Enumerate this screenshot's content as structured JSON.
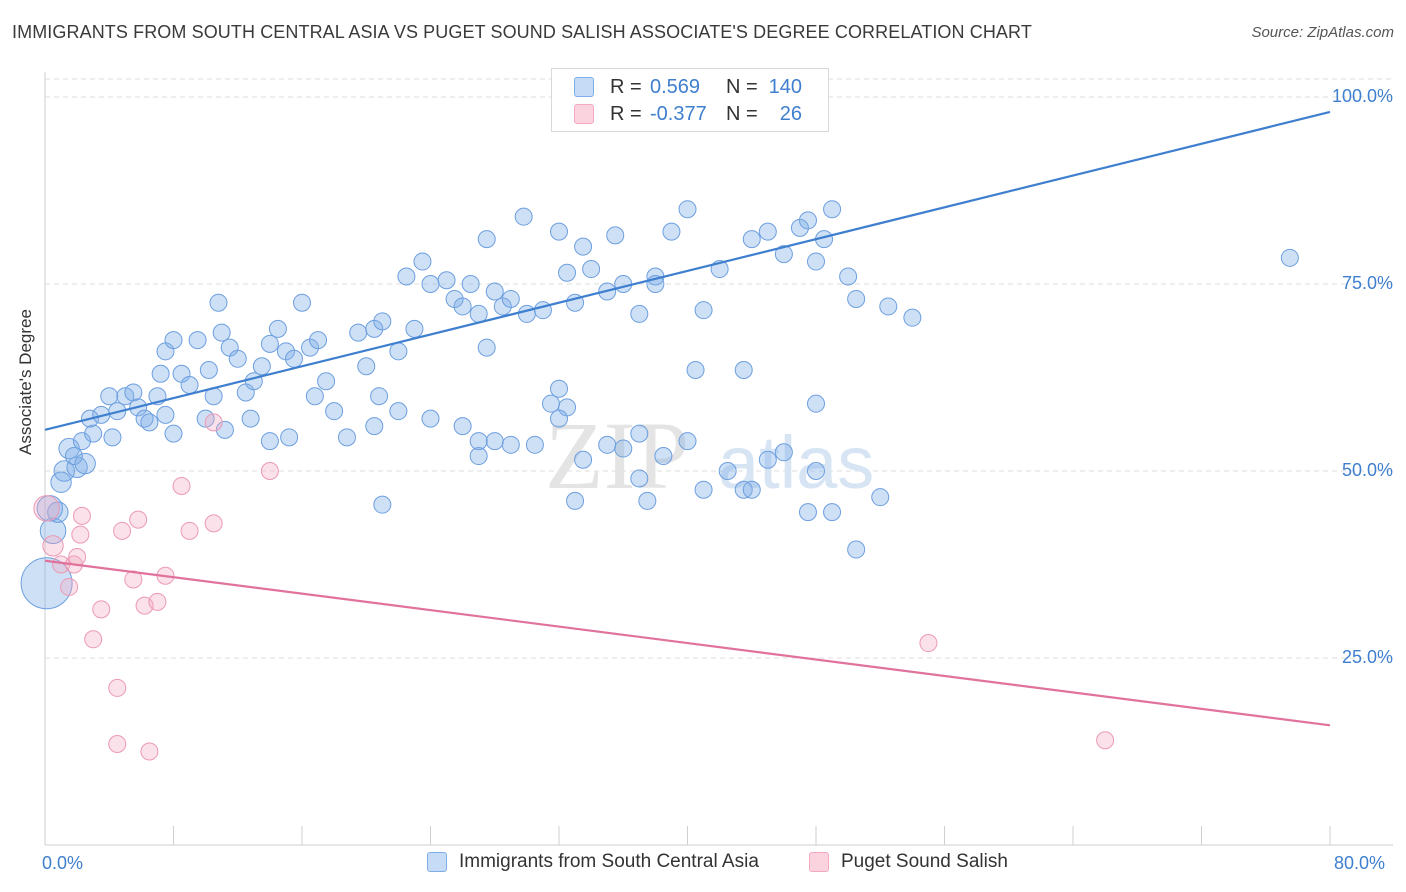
{
  "title": "IMMIGRANTS FROM SOUTH CENTRAL ASIA VS PUGET SOUND SALISH ASSOCIATE'S DEGREE CORRELATION CHART",
  "source": "Source: ZipAtlas.com",
  "watermark": {
    "zip": "ZIP",
    "atlas": "atlas"
  },
  "colors": {
    "blue": "#7eaee8",
    "blue_line": "#3f7fcf",
    "pink": "#f4a9c0",
    "pink_line": "#e0729c",
    "grid": "#dedede"
  },
  "legend": {
    "rows": [
      {
        "r_label": "R =",
        "r_value": "0.569",
        "n_label": "N =",
        "n_value": "140"
      },
      {
        "r_label": "R =",
        "r_value": "-0.377",
        "n_label": "N =",
        "n_value": "26"
      }
    ]
  },
  "bottom_legend": {
    "series1": "Immigrants from South Central Asia",
    "series2": "Puget Sound Salish"
  },
  "chart_data": {
    "type": "scatter",
    "title": "IMMIGRANTS FROM SOUTH CENTRAL ASIA VS PUGET SOUND SALISH ASSOCIATE'S DEGREE CORRELATION CHART",
    "xlabel": "",
    "ylabel": "Associate's Degree",
    "xlim": [
      0,
      80
    ],
    "ylim": [
      0,
      102
    ],
    "x_tick_labels": [
      "0.0%",
      "80.0%"
    ],
    "y_tick_labels": [
      "25.0%",
      "50.0%",
      "75.0%",
      "100.0%"
    ],
    "y_ticks": [
      25,
      50,
      75,
      100
    ],
    "series": [
      {
        "name": "Immigrants from South Central Asia",
        "trend": {
          "x0": 0,
          "y0": 55.5,
          "x1": 80,
          "y1": 98
        },
        "points": [
          [
            0.1,
            35,
            3
          ],
          [
            0.3,
            45,
            1.5
          ],
          [
            0.5,
            42,
            1.5
          ],
          [
            0.8,
            44.5,
            1.2
          ],
          [
            1.2,
            50,
            1.2
          ],
          [
            1.0,
            48.5,
            1.2
          ],
          [
            1.5,
            53,
            1.2
          ],
          [
            2.0,
            50.5,
            1.2
          ],
          [
            1.8,
            52,
            1
          ],
          [
            2.5,
            51,
            1.2
          ],
          [
            2.3,
            54,
            1
          ],
          [
            3.0,
            55,
            1
          ],
          [
            2.8,
            57,
            1
          ],
          [
            3.5,
            57.5,
            1
          ],
          [
            4.0,
            60,
            1
          ],
          [
            4.2,
            54.5,
            1
          ],
          [
            4.5,
            58,
            1
          ],
          [
            5.0,
            60,
            1
          ],
          [
            5.5,
            60.5,
            1
          ],
          [
            5.8,
            58.5,
            1
          ],
          [
            6.2,
            57,
            1
          ],
          [
            6.5,
            56.5,
            1
          ],
          [
            7.0,
            60,
            1
          ],
          [
            7.5,
            57.5,
            1
          ],
          [
            8.0,
            55,
            1
          ],
          [
            7.2,
            63,
            1
          ],
          [
            7.5,
            66,
            1
          ],
          [
            8.5,
            63,
            1
          ],
          [
            9.0,
            61.5,
            1
          ],
          [
            8.0,
            67.5,
            1
          ],
          [
            9.5,
            67.5,
            1
          ],
          [
            10.0,
            57,
            1
          ],
          [
            10.5,
            60,
            1
          ],
          [
            11.0,
            68.5,
            1
          ],
          [
            11.5,
            66.5,
            1
          ],
          [
            12.0,
            65,
            1
          ],
          [
            12.5,
            60.5,
            1
          ],
          [
            13.0,
            62,
            1
          ],
          [
            10.2,
            63.5,
            1
          ],
          [
            10.8,
            72.5,
            1
          ],
          [
            11.2,
            55.5,
            1
          ],
          [
            12.8,
            57,
            1
          ],
          [
            13.5,
            64,
            1
          ],
          [
            14.0,
            67,
            1
          ],
          [
            14.5,
            69,
            1
          ],
          [
            15.0,
            66,
            1
          ],
          [
            15.5,
            65,
            1
          ],
          [
            16.5,
            66.5,
            1
          ],
          [
            17.0,
            67.5,
            1
          ],
          [
            17.5,
            62,
            1
          ],
          [
            18.0,
            58,
            1
          ],
          [
            16.0,
            72.5,
            1
          ],
          [
            15.2,
            54.5,
            1
          ],
          [
            14.0,
            54,
            1
          ],
          [
            16.8,
            60,
            1
          ],
          [
            18.8,
            54.5,
            1
          ],
          [
            19.5,
            68.5,
            1
          ],
          [
            20.0,
            64,
            1
          ],
          [
            20.5,
            69,
            1
          ],
          [
            21.0,
            70,
            1
          ],
          [
            20.8,
            60,
            1
          ],
          [
            22.0,
            66,
            1
          ],
          [
            22.5,
            76,
            1
          ],
          [
            23.5,
            78,
            1
          ],
          [
            24.0,
            75,
            1
          ],
          [
            23.0,
            69,
            1
          ],
          [
            25.0,
            75.5,
            1
          ],
          [
            25.5,
            73,
            1
          ],
          [
            26.0,
            72,
            1
          ],
          [
            26.5,
            75,
            1
          ],
          [
            27.0,
            71,
            1
          ],
          [
            27.5,
            66.5,
            1
          ],
          [
            28.0,
            74,
            1
          ],
          [
            28.5,
            72,
            1
          ],
          [
            29.0,
            73,
            1
          ],
          [
            30.0,
            71,
            1
          ],
          [
            27.5,
            81,
            1
          ],
          [
            29.8,
            84,
            1
          ],
          [
            31.0,
            71.5,
            1
          ],
          [
            32.0,
            82,
            1
          ],
          [
            32.5,
            76.5,
            1
          ],
          [
            33.0,
            72.5,
            1
          ],
          [
            33.5,
            80,
            1
          ],
          [
            34.0,
            77,
            1
          ],
          [
            35.0,
            74,
            1
          ],
          [
            35.5,
            81.5,
            1
          ],
          [
            36.0,
            75,
            1
          ],
          [
            37.0,
            71,
            1
          ],
          [
            38.0,
            76,
            1
          ],
          [
            39.0,
            82,
            1
          ],
          [
            40.0,
            85,
            1
          ],
          [
            41.0,
            71.5,
            1
          ],
          [
            42.0,
            77,
            1
          ],
          [
            44.0,
            81,
            1
          ],
          [
            45.0,
            82,
            1
          ],
          [
            46.0,
            79,
            1
          ],
          [
            47.0,
            82.5,
            1
          ],
          [
            47.5,
            83.5,
            1
          ],
          [
            48.0,
            78,
            1
          ],
          [
            48.5,
            81,
            1
          ],
          [
            49.0,
            85,
            1
          ],
          [
            50.0,
            76,
            1
          ],
          [
            50.5,
            73,
            1
          ],
          [
            52.5,
            72,
            1
          ],
          [
            54.0,
            70.5,
            1
          ],
          [
            38.0,
            75,
            1
          ],
          [
            40.5,
            63.5,
            1
          ],
          [
            43.5,
            63.5,
            1
          ],
          [
            22.0,
            58,
            1
          ],
          [
            24.0,
            57,
            1
          ],
          [
            26.0,
            56,
            1
          ],
          [
            27.0,
            52,
            1
          ],
          [
            28.0,
            54,
            1
          ],
          [
            30.5,
            53.5,
            1
          ],
          [
            31.5,
            59,
            1
          ],
          [
            32.0,
            61,
            1
          ],
          [
            32.5,
            58.5,
            1
          ],
          [
            33.0,
            46,
            1
          ],
          [
            35.0,
            53.5,
            1
          ],
          [
            36.0,
            53,
            1
          ],
          [
            37.0,
            49,
            1
          ],
          [
            37.5,
            46,
            1
          ],
          [
            38.5,
            52,
            1
          ],
          [
            40.0,
            54,
            1
          ],
          [
            41.0,
            47.5,
            1
          ],
          [
            42.5,
            50,
            1
          ],
          [
            43.5,
            47.5,
            1
          ],
          [
            44.0,
            47.5,
            1
          ],
          [
            45.0,
            51.5,
            1
          ],
          [
            46.0,
            52.5,
            1
          ],
          [
            47.5,
            44.5,
            1
          ],
          [
            48.0,
            50,
            1
          ],
          [
            49.0,
            44.5,
            1
          ],
          [
            50.5,
            39.5,
            1
          ],
          [
            52.0,
            46.5,
            1
          ],
          [
            48.0,
            59,
            1
          ],
          [
            77.5,
            78.5,
            1
          ],
          [
            20.5,
            56,
            1
          ],
          [
            21.0,
            45.5,
            1
          ],
          [
            27.0,
            54,
            1
          ],
          [
            29.0,
            53.5,
            1
          ],
          [
            32.0,
            57,
            1
          ],
          [
            33.5,
            51.5,
            1
          ],
          [
            37.0,
            55,
            1
          ]
        ]
      },
      {
        "name": "Puget Sound Salish",
        "trend": {
          "x0": 0,
          "y0": 38,
          "x1": 80,
          "y1": 16
        },
        "points": [
          [
            0.1,
            45,
            1.5
          ],
          [
            0.5,
            40,
            1.2
          ],
          [
            1.0,
            37.5,
            1
          ],
          [
            1.5,
            34.5,
            1
          ],
          [
            1.8,
            37.5,
            1
          ],
          [
            2.2,
            41.5,
            1
          ],
          [
            2.3,
            44,
            1
          ],
          [
            3.0,
            27.5,
            1
          ],
          [
            3.5,
            31.5,
            1
          ],
          [
            4.5,
            21,
            1
          ],
          [
            4.5,
            13.5,
            1
          ],
          [
            4.8,
            42,
            1
          ],
          [
            5.5,
            35.5,
            1
          ],
          [
            5.8,
            43.5,
            1
          ],
          [
            6.2,
            32,
            1
          ],
          [
            6.5,
            12.5,
            1
          ],
          [
            7.0,
            32.5,
            1
          ],
          [
            7.5,
            36,
            1
          ],
          [
            8.5,
            48,
            1
          ],
          [
            9.0,
            42,
            1
          ],
          [
            10.5,
            43,
            1
          ],
          [
            10.5,
            56.5,
            1
          ],
          [
            14.0,
            50,
            1
          ],
          [
            55.0,
            27,
            1
          ],
          [
            66.0,
            14,
            1
          ],
          [
            2.0,
            38.5,
            1
          ]
        ]
      }
    ]
  }
}
